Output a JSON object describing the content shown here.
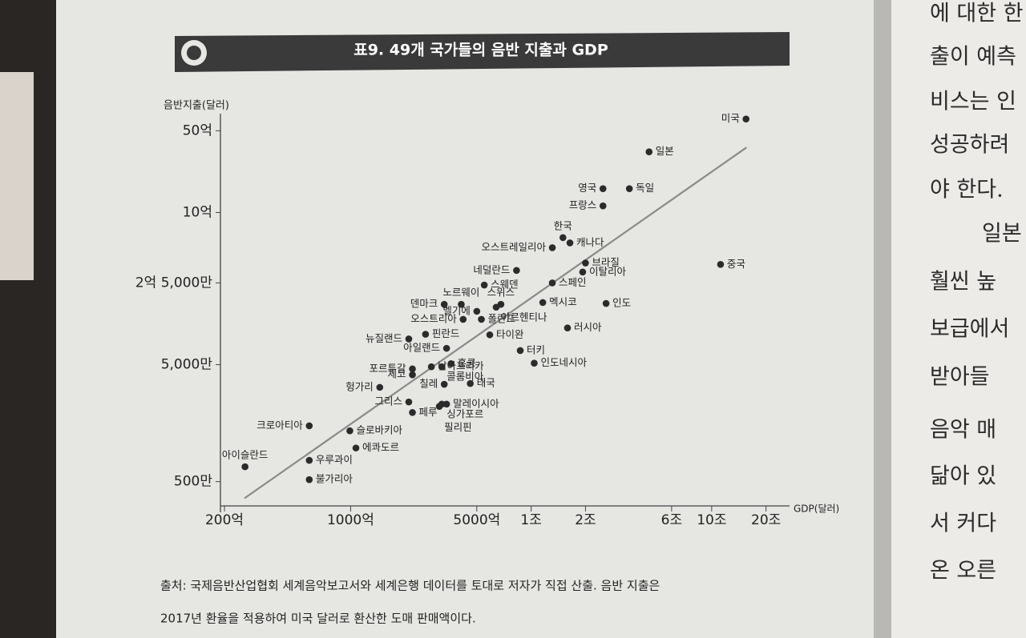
{
  "chart_data": {
    "type": "scatter",
    "title": "표9. 49개 국가들의 음반 지출과 GDP",
    "y_label": "음반지출(달러)",
    "x_label": "GDP(달러)",
    "labels": [
      "미국",
      "일본",
      "영국",
      "독일",
      "프랑스",
      "한국",
      "캐나다",
      "오스트레일리아",
      "브라질",
      "이탈리아",
      "중국",
      "네덜란드",
      "스웨덴",
      "스페인",
      "노르웨이",
      "덴마크",
      "스위스",
      "멕시코",
      "인도",
      "벨기에",
      "아르헨티나",
      "오스트리아",
      "폴란드",
      "러시아",
      "핀란드",
      "타이완",
      "뉴질랜드",
      "아일랜드",
      "남아프리카",
      "터키",
      "인도네시아",
      "포르투갈",
      "체코",
      "홍콩",
      "콜롬비아",
      "칠레",
      "태국",
      "말레이시아",
      "싱가포르",
      "필리핀",
      "페루",
      "그리스",
      "헝가리",
      "크로아티아",
      "슬로바키아",
      "에콰도르",
      "아이슬란드",
      "우루과이",
      "불가리아"
    ],
    "x": [
      15500000000000,
      4500000000000,
      2500000000000,
      3500000000000,
      2500000000000,
      1500000000000,
      1640000000000,
      1310000000000,
      2000000000000,
      1930000000000,
      11200000000000,
      830000000000,
      550000000000,
      1310000000000,
      410000000000,
      330000000000,
      680000000000,
      1160000000000,
      2600000000000,
      500000000000,
      640000000000,
      420000000000,
      530000000000,
      1590000000000,
      260000000000,
      590000000000,
      210000000000,
      340000000000,
      280000000000,
      870000000000,
      1040000000000,
      220000000000,
      220000000000,
      360000000000,
      320000000000,
      330000000000,
      460000000000,
      340000000000,
      320000000000,
      310000000000,
      220000000000,
      210000000000,
      145000000000,
      59000000000,
      99000000000,
      107000000000,
      26000000000,
      59000000000,
      59000000000
    ],
    "values": [
      6300000000,
      3300000000,
      1600000000,
      1600000000,
      1140000000,
      610000000,
      550000000,
      500000000,
      370000000,
      310000000,
      360000000,
      320000000,
      240000000,
      250000000,
      164000000,
      164000000,
      164000000,
      170000000,
      167000000,
      143000000,
      155000000,
      122000000,
      122000000,
      103000000,
      91000000,
      90000000,
      83000000,
      69000000,
      48000000,
      66000000,
      51500000,
      46000000,
      41000000,
      51000000,
      48000000,
      34000000,
      34500000,
      23000000,
      23000000,
      22000000,
      19500000,
      24000000,
      32000000,
      15000000,
      13600000,
      9700000,
      6700000,
      7600000,
      5200000
    ],
    "color": "#2b2b2b",
    "trend": {
      "x": [
        25800000000,
        15600000000000
      ],
      "values": [
        3600000,
        3600000000
      ],
      "color": "#8a8a8a"
    },
    "xlim": [
      19000000000,
      27000000000000
    ],
    "ylim": [
      3100000,
      7000000000
    ],
    "log_x": true,
    "log_y": true,
    "xticks": [
      {
        "value": 20000000000,
        "label": "200억"
      },
      {
        "value": 100000000000,
        "label": "1000억"
      },
      {
        "value": 500000000000,
        "label": "5000억"
      },
      {
        "value": 1000000000000,
        "label": "1조"
      },
      {
        "value": 2000000000000,
        "label": "2조"
      },
      {
        "value": 6000000000000,
        "label": "6조"
      },
      {
        "value": 10000000000000,
        "label": "10조"
      },
      {
        "value": 20000000000000,
        "label": "20조"
      }
    ],
    "yticks": [
      {
        "value": 5000000,
        "label": "500만"
      },
      {
        "value": 50000000,
        "label": "5,000만"
      },
      {
        "value": 250000000,
        "label": "2억 5,000만"
      },
      {
        "value": 1000000000,
        "label": "10억"
      },
      {
        "value": 5000000000,
        "label": "50억"
      }
    ]
  },
  "source": [
    "출처: 국제음반산업협회 세계음악보고서와 세계은행 데이터를 토대로 저자가 직접 산출. 음반 지출은",
    "2017년 환율을 적용하여 미국 달러로 환산한 도매 판매액이다."
  ],
  "right_page_lines": [
    "에 대한 한",
    "출이 예측",
    "비스는 인",
    "성공하려",
    "야 한다.",
    "일본",
    "훨씬 높",
    "보급에서",
    "받아들",
    "음악 매",
    "닮아 있",
    "서 커다",
    "온 오른"
  ]
}
